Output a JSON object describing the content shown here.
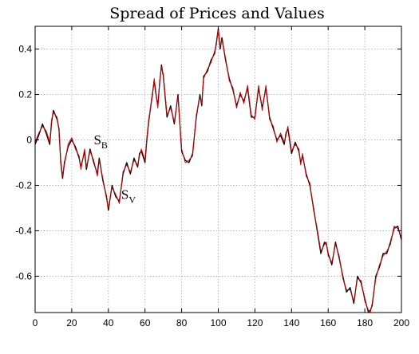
{
  "chart_data": {
    "type": "line",
    "title": "Spread of Prices and Values",
    "xlabel": "",
    "ylabel": "",
    "xlim": [
      0,
      200
    ],
    "ylim": [
      -0.76,
      0.5
    ],
    "xticks": [
      0,
      20,
      40,
      60,
      80,
      100,
      120,
      140,
      160,
      180,
      200
    ],
    "yticks": [
      0.4,
      0.2,
      0,
      -0.2,
      -0.4,
      -0.6
    ],
    "ytick_labels": [
      "0.4",
      "0.2",
      "0",
      "-0.2",
      "-0.4",
      "-0.6"
    ],
    "grid": true,
    "annotations": [
      {
        "text": "S",
        "sub": "B",
        "x": 32,
        "y": -0.02
      },
      {
        "text": "S",
        "sub": "V",
        "x": 47,
        "y": -0.26
      }
    ],
    "series": [
      {
        "color": "#000000",
        "x": [
          0,
          2,
          4,
          6,
          8,
          9,
          10,
          12,
          13,
          14,
          15,
          16,
          18,
          20,
          22,
          24,
          25,
          27,
          28,
          30,
          32,
          34,
          35,
          37,
          39,
          40,
          42,
          44,
          46,
          48,
          50,
          52,
          54,
          56,
          57,
          58,
          60,
          61,
          62,
          64,
          65,
          66,
          67,
          68,
          69,
          70,
          72,
          74,
          76,
          78,
          80,
          82,
          84,
          86,
          88,
          90,
          91,
          92,
          94,
          96,
          98,
          99,
          100,
          101,
          102,
          104,
          106,
          108,
          110,
          112,
          114,
          116,
          118,
          120,
          122,
          124,
          126,
          128,
          130,
          132,
          134,
          136,
          137,
          138,
          140,
          142,
          144,
          145,
          146,
          148,
          150,
          152,
          154,
          156,
          158,
          159,
          160,
          162,
          164,
          166,
          168,
          170,
          172,
          174,
          176,
          178,
          180,
          182,
          183,
          184,
          186,
          188,
          190,
          192,
          194,
          196,
          198,
          200
        ],
        "y": [
          -0.02,
          0.02,
          0.07,
          0.03,
          -0.02,
          0.08,
          0.13,
          0.09,
          0.05,
          -0.1,
          -0.17,
          -0.1,
          -0.03,
          0.0,
          -0.03,
          -0.08,
          -0.12,
          -0.05,
          -0.13,
          -0.04,
          -0.1,
          -0.15,
          -0.08,
          -0.18,
          -0.25,
          -0.31,
          -0.2,
          -0.25,
          -0.27,
          -0.15,
          -0.1,
          -0.15,
          -0.08,
          -0.12,
          -0.06,
          -0.05,
          -0.1,
          0.0,
          0.08,
          0.2,
          0.26,
          0.2,
          0.15,
          0.25,
          0.33,
          0.28,
          0.1,
          0.15,
          0.07,
          0.2,
          -0.05,
          -0.09,
          -0.1,
          -0.06,
          0.1,
          0.2,
          0.15,
          0.28,
          0.3,
          0.35,
          0.38,
          0.43,
          0.49,
          0.4,
          0.45,
          0.35,
          0.27,
          0.22,
          0.15,
          0.2,
          0.17,
          0.23,
          0.1,
          0.1,
          0.23,
          0.14,
          0.23,
          0.1,
          0.05,
          0.0,
          0.02,
          -0.02,
          0.03,
          0.05,
          -0.06,
          -0.01,
          -0.05,
          -0.1,
          -0.07,
          -0.15,
          -0.2,
          -0.3,
          -0.4,
          -0.5,
          -0.45,
          -0.46,
          -0.5,
          -0.55,
          -0.45,
          -0.52,
          -0.6,
          -0.67,
          -0.65,
          -0.72,
          -0.6,
          -0.63,
          -0.7,
          -0.76,
          -0.75,
          -0.73,
          -0.6,
          -0.56,
          -0.5,
          -0.5,
          -0.45,
          -0.39,
          -0.38,
          -0.44
        ]
      },
      {
        "color": "#cc0000",
        "x": [
          0,
          2,
          4,
          6,
          8,
          9,
          10,
          12,
          13,
          14,
          15,
          16,
          18,
          20,
          22,
          24,
          25,
          27,
          28,
          30,
          32,
          34,
          35,
          37,
          39,
          40,
          42,
          44,
          46,
          48,
          50,
          52,
          54,
          56,
          57,
          58,
          60,
          61,
          62,
          64,
          65,
          66,
          67,
          68,
          69,
          70,
          72,
          74,
          76,
          78,
          80,
          82,
          84,
          86,
          88,
          90,
          91,
          92,
          94,
          96,
          98,
          99,
          100,
          101,
          102,
          104,
          106,
          108,
          110,
          112,
          114,
          116,
          118,
          120,
          122,
          124,
          126,
          128,
          130,
          132,
          134,
          136,
          137,
          138,
          140,
          142,
          144,
          145,
          146,
          148,
          150,
          152,
          154,
          156,
          158,
          159,
          160,
          162,
          164,
          166,
          168,
          170,
          172,
          174,
          176,
          178,
          180,
          182,
          183,
          184,
          186,
          188,
          190,
          192,
          194,
          196,
          198,
          200
        ],
        "y": [
          -0.01,
          0.03,
          0.06,
          0.04,
          -0.01,
          0.09,
          0.12,
          0.1,
          0.04,
          -0.09,
          -0.16,
          -0.11,
          -0.02,
          0.01,
          -0.04,
          -0.07,
          -0.13,
          -0.04,
          -0.12,
          -0.05,
          -0.09,
          -0.16,
          -0.09,
          -0.17,
          -0.26,
          -0.3,
          -0.21,
          -0.24,
          -0.28,
          -0.14,
          -0.11,
          -0.14,
          -0.09,
          -0.11,
          -0.07,
          -0.04,
          -0.09,
          0.01,
          0.09,
          0.19,
          0.27,
          0.21,
          0.14,
          0.26,
          0.32,
          0.29,
          0.11,
          0.14,
          0.08,
          0.19,
          -0.04,
          -0.1,
          -0.09,
          -0.07,
          0.11,
          0.19,
          0.16,
          0.27,
          0.31,
          0.34,
          0.39,
          0.42,
          0.49,
          0.41,
          0.44,
          0.36,
          0.26,
          0.23,
          0.14,
          0.21,
          0.16,
          0.24,
          0.11,
          0.09,
          0.24,
          0.13,
          0.24,
          0.09,
          0.06,
          -0.01,
          0.03,
          -0.01,
          0.02,
          0.06,
          -0.05,
          -0.02,
          -0.04,
          -0.11,
          -0.06,
          -0.16,
          -0.19,
          -0.31,
          -0.39,
          -0.49,
          -0.46,
          -0.45,
          -0.51,
          -0.54,
          -0.46,
          -0.51,
          -0.61,
          -0.66,
          -0.66,
          -0.71,
          -0.61,
          -0.62,
          -0.71,
          -0.75,
          -0.76,
          -0.72,
          -0.61,
          -0.55,
          -0.51,
          -0.49,
          -0.46,
          -0.38,
          -0.39,
          -0.43
        ]
      }
    ]
  }
}
